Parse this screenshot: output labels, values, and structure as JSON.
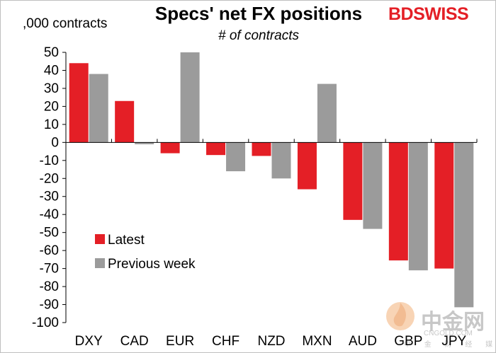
{
  "header": {
    "title": "Specs' net FX positions",
    "subtitle": "# of contracts",
    "y_unit": ",000 contracts"
  },
  "brand": {
    "logo_part1": "BD",
    "logo_part2": "SWISS",
    "accent_color": "#e41f26",
    "watermark_text": "中金网",
    "watermark_sub": "CNGOLD.COM",
    "watermark_cn": "中 金 财 经 媒 体"
  },
  "chart_data": {
    "type": "bar",
    "title": "Specs' net FX positions",
    "subtitle": "# of contracts",
    "ylabel": ",000 contracts",
    "xlabel": "",
    "ylim": [
      -100,
      50
    ],
    "yticks": [
      50,
      40,
      30,
      20,
      10,
      0,
      -10,
      -20,
      -30,
      -40,
      -50,
      -60,
      -70,
      -80,
      -90,
      -100
    ],
    "categories": [
      "DXY",
      "CAD",
      "EUR",
      "CHF",
      "NZD",
      "MXN",
      "AUD",
      "GBP",
      "JPY"
    ],
    "series": [
      {
        "name": "Latest",
        "color": "#e41f26",
        "values": [
          44,
          23,
          -6,
          -7,
          -7.5,
          -26,
          -43,
          -65.5,
          -70
        ]
      },
      {
        "name": "Previous week",
        "color": "#9b9b9b",
        "values": [
          38,
          -1,
          50,
          -16,
          -20,
          32.5,
          -48,
          -71,
          -91.5
        ]
      }
    ],
    "legend_position": "lower-left",
    "grid": false
  }
}
